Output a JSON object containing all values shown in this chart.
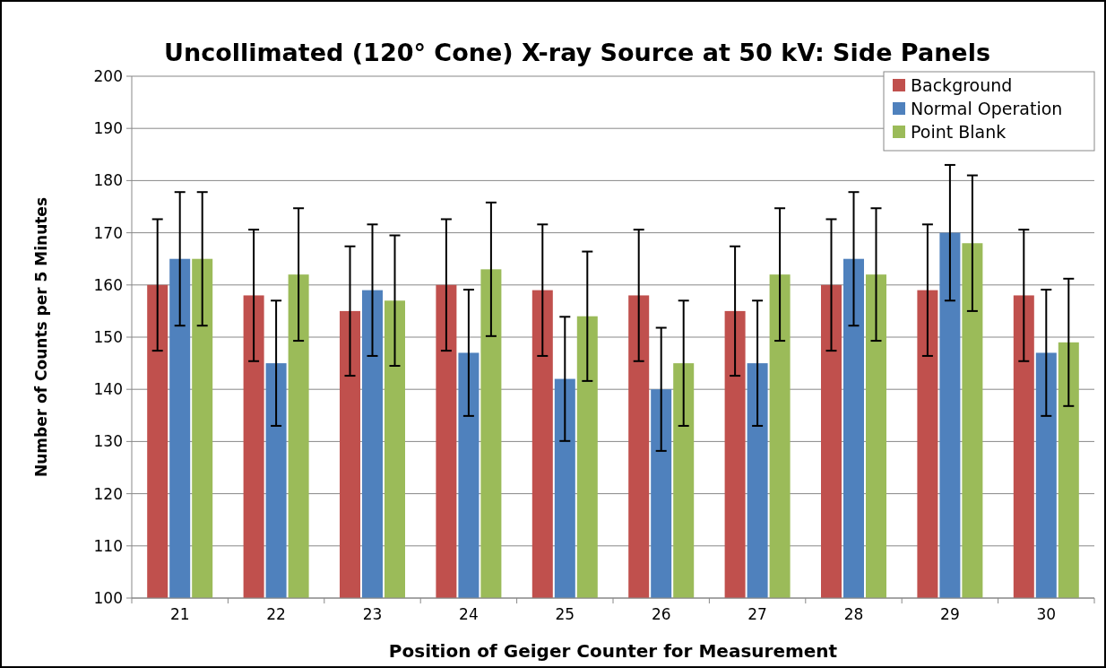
{
  "chart_data": {
    "type": "bar",
    "title": "Uncollimated (120° Cone) X-ray Source at 50 kV: Side Panels",
    "xlabel": "Position of Geiger Counter for Measurement",
    "ylabel": "Number of Counts per 5 Minutes",
    "categories": [
      "21",
      "22",
      "23",
      "24",
      "25",
      "26",
      "27",
      "28",
      "29",
      "30"
    ],
    "series": [
      {
        "name": "Background",
        "color": "#c0504d",
        "values": [
          160,
          158,
          155,
          160,
          159,
          158,
          155,
          160,
          159,
          158
        ],
        "errors": [
          12.6,
          12.6,
          12.4,
          12.6,
          12.6,
          12.6,
          12.4,
          12.6,
          12.6,
          12.6
        ]
      },
      {
        "name": "Normal Operation",
        "color": "#4f81bd",
        "values": [
          165,
          145,
          159,
          147,
          142,
          140,
          145,
          165,
          170,
          147
        ],
        "errors": [
          12.8,
          12.0,
          12.6,
          12.1,
          11.9,
          11.8,
          12.0,
          12.8,
          13.0,
          12.1
        ]
      },
      {
        "name": "Point Blank",
        "color": "#9bbb59",
        "values": [
          165,
          162,
          157,
          163,
          154,
          145,
          162,
          162,
          168,
          149
        ],
        "errors": [
          12.8,
          12.7,
          12.5,
          12.8,
          12.4,
          12.0,
          12.7,
          12.7,
          13.0,
          12.2
        ]
      }
    ],
    "ylim": [
      100,
      200
    ],
    "yticks": [
      100,
      110,
      120,
      130,
      140,
      150,
      160,
      170,
      180,
      190,
      200
    ],
    "grid": "y",
    "legend": "top right"
  }
}
